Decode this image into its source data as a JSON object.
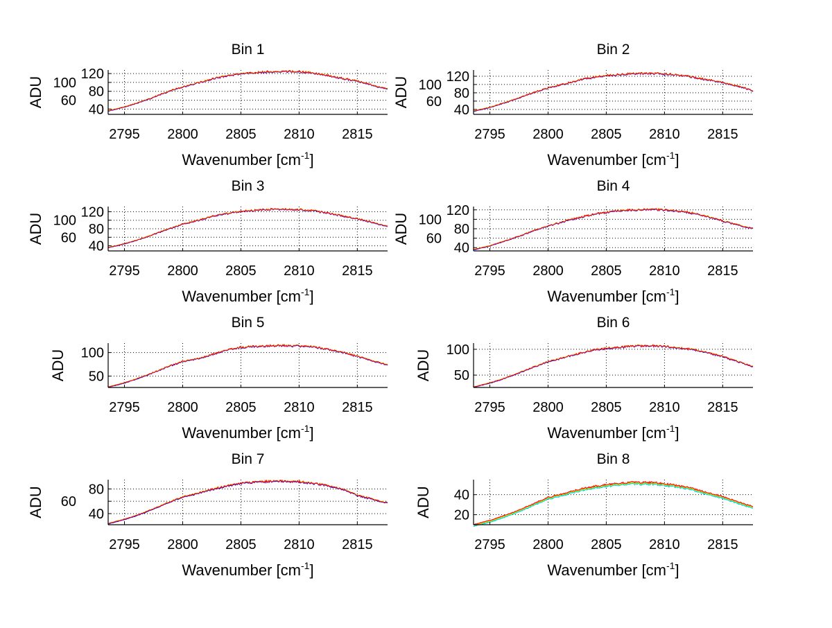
{
  "chart_data": [
    {
      "type": "line",
      "title": "Bin 1",
      "xlabel": "Wavenumber [cm",
      "xlabel_sup": "-1",
      "xlabel_end": "]",
      "ylabel": "ADU",
      "xlim": [
        2793.6,
        2817.6
      ],
      "ylim": [
        28,
        128
      ],
      "xticks": [
        2795,
        2800,
        2805,
        2810,
        2815
      ],
      "yticks": [
        40,
        60,
        80,
        100,
        120
      ],
      "grid": true,
      "x": [
        2793.6,
        2795,
        2796,
        2797,
        2798,
        2799,
        2800,
        2801,
        2802,
        2803,
        2804,
        2805,
        2806,
        2807,
        2808,
        2809,
        2810,
        2811,
        2812,
        2813,
        2814,
        2815,
        2816,
        2817,
        2817.6
      ],
      "y": [
        36,
        45,
        53,
        62,
        72,
        82,
        90,
        97,
        104,
        111,
        116,
        120,
        122,
        124,
        125,
        125,
        124,
        122,
        118,
        113,
        108,
        103,
        96,
        89,
        86
      ],
      "series_colors": [
        "#0000ff",
        "#ffff00",
        "#ff0000"
      ],
      "series_offsets": [
        -0.8,
        0.3,
        0
      ]
    },
    {
      "type": "line",
      "title": "Bin 2",
      "xlabel": "Wavenumber [cm",
      "xlabel_sup": "-1",
      "xlabel_end": "]",
      "ylabel": "ADU",
      "xlim": [
        2793.6,
        2817.6
      ],
      "ylim": [
        28,
        135
      ],
      "xticks": [
        2795,
        2800,
        2805,
        2810,
        2815
      ],
      "yticks": [
        40,
        60,
        80,
        100,
        120
      ],
      "grid": true,
      "x": [
        2793.6,
        2795,
        2796,
        2797,
        2798,
        2799,
        2800,
        2801,
        2802,
        2803,
        2804,
        2805,
        2806,
        2807,
        2808,
        2809,
        2810,
        2811,
        2812,
        2813,
        2814,
        2815,
        2816,
        2817,
        2817.6
      ],
      "y": [
        36,
        45,
        54,
        63,
        73,
        83,
        92,
        99,
        106,
        113,
        118,
        122,
        124,
        126,
        127,
        127,
        126,
        124,
        120,
        115,
        110,
        105,
        98,
        91,
        85
      ],
      "series_colors": [
        "#0000ff",
        "#ffff00",
        "#ff0000"
      ],
      "series_offsets": [
        -0.8,
        0.3,
        0
      ]
    },
    {
      "type": "line",
      "title": "Bin 3",
      "xlabel": "Wavenumber [cm",
      "xlabel_sup": "-1",
      "xlabel_end": "]",
      "ylabel": "ADU",
      "xlim": [
        2793.6,
        2817.6
      ],
      "ylim": [
        28,
        132
      ],
      "xticks": [
        2795,
        2800,
        2805,
        2810,
        2815
      ],
      "yticks": [
        40,
        60,
        80,
        100,
        120
      ],
      "grid": true,
      "x": [
        2793.6,
        2795,
        2796,
        2797,
        2798,
        2799,
        2800,
        2801,
        2802,
        2803,
        2804,
        2805,
        2806,
        2807,
        2808,
        2809,
        2810,
        2811,
        2812,
        2813,
        2814,
        2815,
        2816,
        2817,
        2817.6
      ],
      "y": [
        36,
        45,
        53,
        62,
        72,
        82,
        91,
        98,
        105,
        112,
        117,
        121,
        123,
        125,
        126,
        126,
        125,
        123,
        119,
        114,
        109,
        104,
        97,
        90,
        86
      ],
      "series_colors": [
        "#0000ff",
        "#ffff00",
        "#ff0000"
      ],
      "series_offsets": [
        -0.8,
        0.3,
        0
      ]
    },
    {
      "type": "line",
      "title": "Bin 4",
      "xlabel": "Wavenumber [cm",
      "xlabel_sup": "-1",
      "xlabel_end": "]",
      "ylabel": "ADU",
      "xlim": [
        2793.6,
        2817.6
      ],
      "ylim": [
        33,
        127
      ],
      "xticks": [
        2795,
        2800,
        2805,
        2810,
        2815
      ],
      "yticks": [
        40,
        60,
        80,
        100,
        120
      ],
      "grid": true,
      "x": [
        2793.6,
        2795,
        2796,
        2797,
        2798,
        2799,
        2800,
        2801,
        2802,
        2803,
        2804,
        2805,
        2806,
        2807,
        2808,
        2809,
        2810,
        2811,
        2812,
        2813,
        2814,
        2815,
        2816,
        2817,
        2817.6
      ],
      "y": [
        36,
        44,
        52,
        60,
        69,
        78,
        86,
        93,
        100,
        106,
        111,
        115,
        118,
        120,
        121,
        121,
        120,
        118,
        115,
        110,
        104,
        97,
        90,
        84,
        81
      ],
      "series_colors": [
        "#0000ff",
        "#ffff00",
        "#ff0000"
      ],
      "series_offsets": [
        -0.8,
        0.3,
        0
      ]
    },
    {
      "type": "line",
      "title": "Bin 5",
      "xlabel": "Wavenumber [cm",
      "xlabel_sup": "-1",
      "xlabel_end": "]",
      "ylabel": "ADU",
      "xlim": [
        2793.6,
        2817.6
      ],
      "ylim": [
        26,
        120
      ],
      "xticks": [
        2795,
        2800,
        2805,
        2810,
        2815
      ],
      "yticks": [
        50,
        100
      ],
      "grid": true,
      "x": [
        2793.6,
        2795,
        2796,
        2797,
        2798,
        2799,
        2800,
        2801,
        2802,
        2803,
        2804,
        2805,
        2806,
        2807,
        2808,
        2809,
        2810,
        2811,
        2812,
        2813,
        2814,
        2815,
        2816,
        2817,
        2817.6
      ],
      "y": [
        27,
        36,
        44,
        53,
        63,
        73,
        81,
        86,
        92,
        100,
        107,
        111,
        113,
        114,
        115,
        115,
        114,
        113,
        109,
        104,
        99,
        92,
        85,
        78,
        74
      ],
      "series_colors": [
        "#0000ff",
        "#ffff00",
        "#ff0000"
      ],
      "series_offsets": [
        -0.8,
        0.3,
        0
      ]
    },
    {
      "type": "line",
      "title": "Bin 6",
      "xlabel": "Wavenumber [cm",
      "xlabel_sup": "-1",
      "xlabel_end": "]",
      "ylabel": "ADU",
      "xlim": [
        2793.6,
        2817.6
      ],
      "ylim": [
        26,
        112
      ],
      "xticks": [
        2795,
        2800,
        2805,
        2810,
        2815
      ],
      "yticks": [
        50,
        100
      ],
      "grid": true,
      "x": [
        2793.6,
        2795,
        2796,
        2797,
        2798,
        2799,
        2800,
        2801,
        2802,
        2803,
        2804,
        2805,
        2806,
        2807,
        2808,
        2809,
        2810,
        2811,
        2812,
        2813,
        2814,
        2815,
        2816,
        2817,
        2817.6
      ],
      "y": [
        27,
        35,
        42,
        50,
        59,
        68,
        76,
        82,
        88,
        94,
        99,
        102,
        104,
        106,
        107,
        107,
        106,
        104,
        101,
        97,
        92,
        86,
        79,
        71,
        67
      ],
      "series_colors": [
        "#0000ff",
        "#ffff00",
        "#ff0000"
      ],
      "series_offsets": [
        -0.8,
        0.3,
        0
      ]
    },
    {
      "type": "line",
      "title": "Bin 7",
      "xlabel": "Wavenumber [cm",
      "xlabel_sup": "-1",
      "xlabel_end": "]",
      "ylabel": "ADU",
      "xlim": [
        2793.6,
        2817.6
      ],
      "ylim": [
        22,
        95
      ],
      "xticks": [
        2795,
        2800,
        2805,
        2810,
        2815
      ],
      "yticks": [
        40,
        60,
        80
      ],
      "grid": true,
      "x": [
        2793.6,
        2795,
        2796,
        2797,
        2798,
        2799,
        2800,
        2801,
        2802,
        2803,
        2804,
        2805,
        2806,
        2807,
        2808,
        2809,
        2810,
        2811,
        2812,
        2813,
        2814,
        2815,
        2816,
        2817,
        2817.6
      ],
      "y": [
        24,
        31,
        37,
        44,
        52,
        60,
        67,
        72,
        77,
        82,
        86,
        89,
        91,
        92,
        93,
        93,
        92,
        90,
        87,
        83,
        78,
        70,
        65,
        60,
        58
      ],
      "series_colors": [
        "#0000ff",
        "#ffff00",
        "#ff0000"
      ],
      "series_offsets": [
        -0.8,
        0.3,
        0
      ]
    },
    {
      "type": "line",
      "title": "Bin 8",
      "xlabel": "Wavenumber [cm",
      "xlabel_sup": "-1",
      "xlabel_end": "]",
      "ylabel": "ADU",
      "xlim": [
        2793.6,
        2817.6
      ],
      "ylim": [
        10,
        55
      ],
      "xticks": [
        2795,
        2800,
        2805,
        2810,
        2815
      ],
      "yticks": [
        20,
        40
      ],
      "grid": true,
      "x": [
        2793.6,
        2795,
        2796,
        2797,
        2798,
        2799,
        2800,
        2801,
        2802,
        2803,
        2804,
        2805,
        2806,
        2807,
        2808,
        2809,
        2810,
        2811,
        2812,
        2813,
        2814,
        2815,
        2816,
        2817,
        2817.6
      ],
      "y": [
        10,
        14,
        18,
        22,
        27,
        32,
        37,
        40,
        43,
        46,
        48,
        50,
        51,
        52,
        52,
        52,
        51,
        49,
        47,
        44,
        41,
        38,
        34,
        30,
        28
      ],
      "series_colors": [
        "#00bfff",
        "#00ff80",
        "#ffff00",
        "#ff8000",
        "#ff0000"
      ],
      "series_offsets": [
        -1.6,
        -1.0,
        -0.4,
        0,
        0.3
      ]
    }
  ]
}
